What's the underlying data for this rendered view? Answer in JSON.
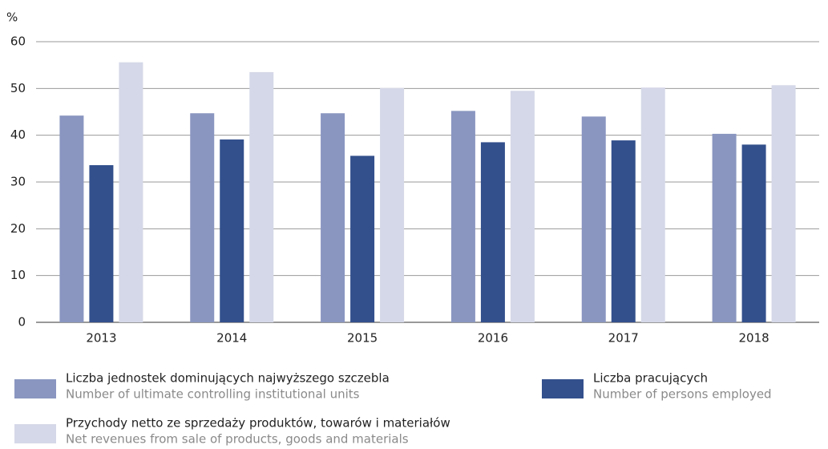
{
  "chart_data": {
    "type": "bar",
    "y_label": "%",
    "categories": [
      "2013",
      "2014",
      "2015",
      "2016",
      "2017",
      "2018"
    ],
    "series": [
      {
        "name": "Liczba jednostek dominujących najwyższego szczebla",
        "name_en": "Number of ultimate controlling institutional units",
        "color": "#8a96c0",
        "values": [
          44.2,
          44.7,
          44.7,
          45.2,
          44.0,
          40.3
        ]
      },
      {
        "name": "Liczba pracujących",
        "name_en": "Number of persons employed",
        "color": "#33508c",
        "values": [
          33.6,
          39.1,
          35.6,
          38.5,
          38.9,
          38.0
        ]
      },
      {
        "name": "Przychody netto ze sprzedaży produktów, towarów i materiałów",
        "name_en": "Net revenues from sale of products, goods and materials",
        "color": "#d5d8e8",
        "values": [
          55.6,
          53.5,
          50.1,
          49.5,
          50.2,
          50.7
        ]
      }
    ],
    "ylim": [
      0,
      60
    ],
    "yticks": [
      0,
      10,
      20,
      30,
      40,
      50,
      60
    ],
    "grid": true
  }
}
